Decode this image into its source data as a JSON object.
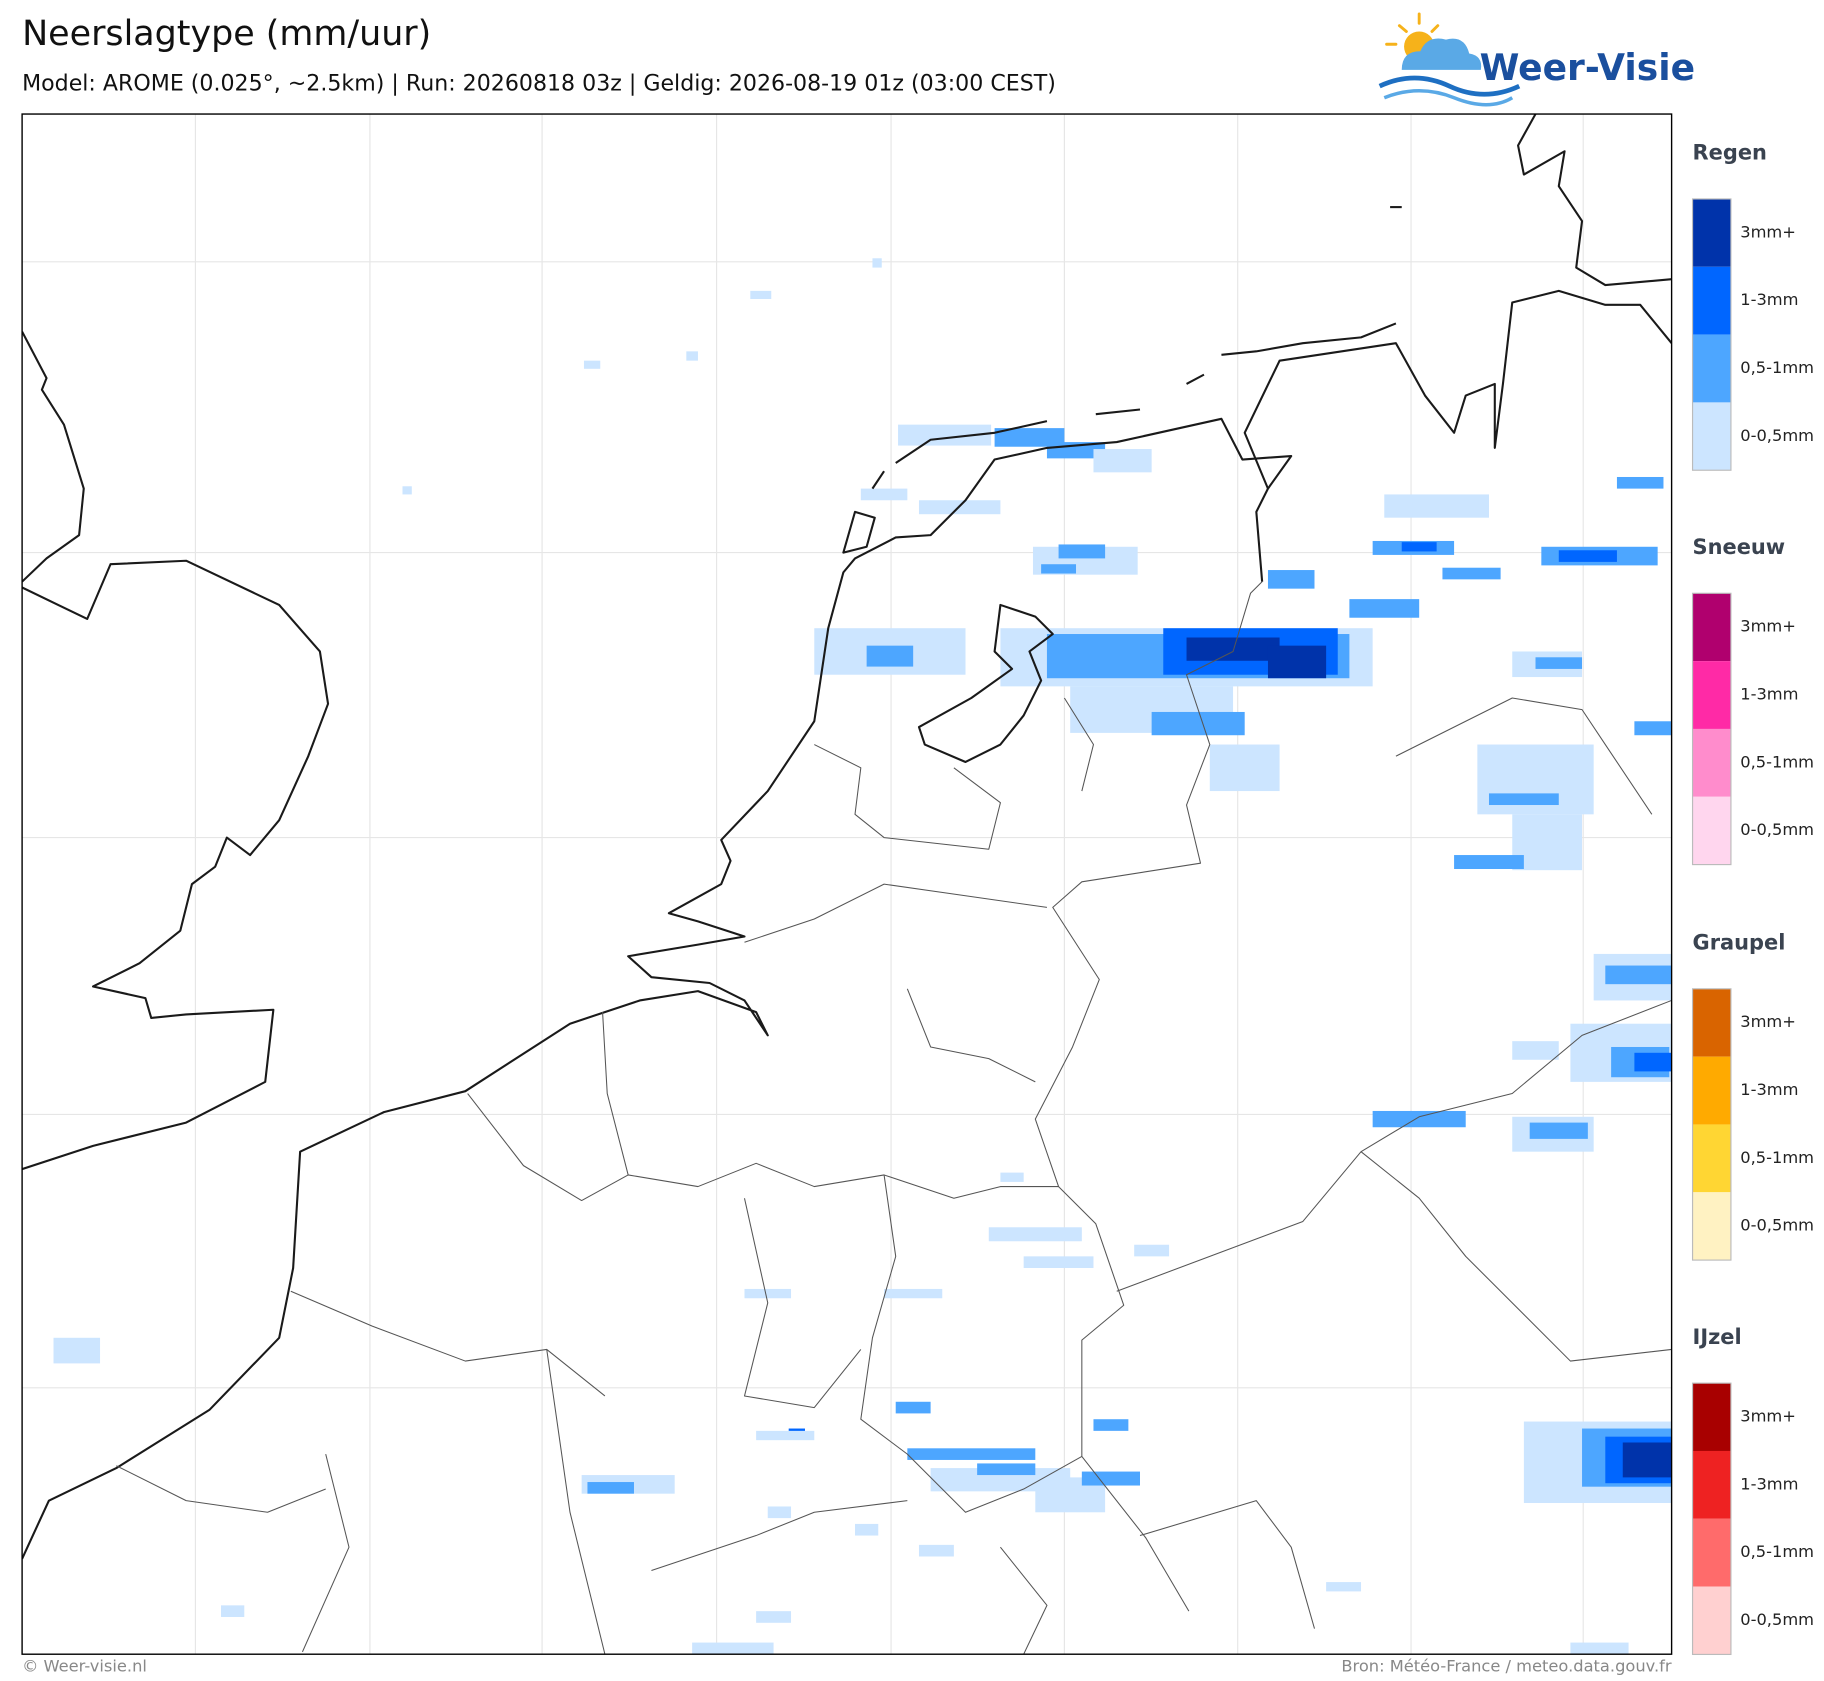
{
  "header": {
    "title": "Neerslagtype (mm/uur)",
    "subtitle": "Model: AROME (0.025°, ~2.5km)  |  Run: 20260818 03z  |  Geldig: 2026-08-19 01z (03:00 CEST)"
  },
  "logo": {
    "text": "Weer-Visie"
  },
  "legend": [
    {
      "title": "Regen",
      "items": [
        "3mm+",
        "1-3mm",
        "0,5-1mm",
        "0-0,5mm"
      ],
      "colors": [
        "#0033aa",
        "#0066ff",
        "#4da6ff",
        "#cce5ff"
      ]
    },
    {
      "title": "Sneeuw",
      "items": [
        "3mm+",
        "1-3mm",
        "0,5-1mm",
        "0-0,5mm"
      ],
      "colors": [
        "#b0006e",
        "#ff2aa6",
        "#ff8ccc",
        "#ffd6ee"
      ]
    },
    {
      "title": "Graupel",
      "items": [
        "3mm+",
        "1-3mm",
        "0,5-1mm",
        "0-0,5mm"
      ],
      "colors": [
        "#d96400",
        "#ffaa00",
        "#ffd633",
        "#fff2c2"
      ]
    },
    {
      "title": "IJzel",
      "items": [
        "3mm+",
        "1-3mm",
        "0,5-1mm",
        "0-0,5mm"
      ],
      "colors": [
        "#a80000",
        "#ee2222",
        "#ff6b6b",
        "#ffd0d0"
      ]
    }
  ],
  "footer": {
    "left": "© Weer-visie.nl",
    "right": "Bron: Météo-France / meteo.data.gouv.fr"
  }
}
